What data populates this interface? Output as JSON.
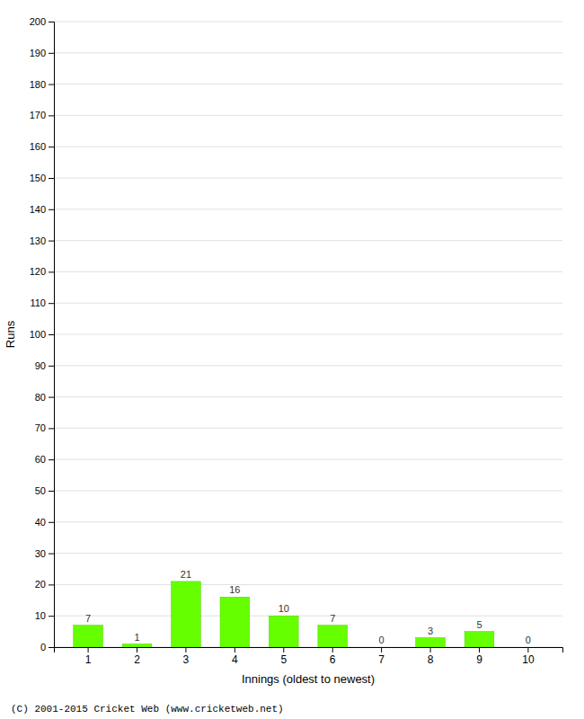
{
  "chart_data": {
    "type": "bar",
    "xlabel": "Innings (oldest to newest)",
    "ylabel": "Runs",
    "categories": [
      1,
      2,
      3,
      4,
      5,
      6,
      7,
      8,
      9,
      10
    ],
    "values": [
      7,
      1,
      21,
      16,
      10,
      7,
      0,
      3,
      5,
      0
    ],
    "color": "#66ff00",
    "ylim": [
      0,
      200
    ],
    "yticks": [
      0,
      10,
      20,
      30,
      40,
      50,
      60,
      70,
      80,
      90,
      100,
      110,
      120,
      130,
      140,
      150,
      160,
      170,
      180,
      190,
      200
    ],
    "grid": true,
    "data_labels": true,
    "annotations": [
      "(C) 2001-2015 Cricket Web (www.cricketweb.net)"
    ]
  }
}
